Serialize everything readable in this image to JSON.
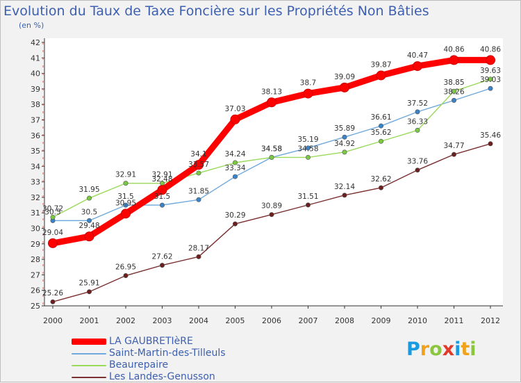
{
  "header": {
    "title": "Evolution du Taux de Taxe Foncière sur les Propriétés Non Bâties",
    "unit": "(en %)"
  },
  "brand": {
    "text": "Proxiti",
    "letters": [
      "P",
      "r",
      "o",
      "x",
      "i",
      "t",
      "i"
    ],
    "colors": [
      "#1a9be0",
      "#f0a21c",
      "#8cc63f",
      "#e03a2a",
      "#1a9be0",
      "#f0a21c",
      "#8cc63f"
    ]
  },
  "chart_data": {
    "type": "line",
    "title": "Evolution du Taux de Taxe Foncière sur les Propriétés Non Bâties",
    "ylabel": "(en %)",
    "xlabel": "",
    "x": [
      2000,
      2001,
      2002,
      2003,
      2004,
      2005,
      2006,
      2007,
      2008,
      2009,
      2010,
      2011,
      2012
    ],
    "ylim": [
      25,
      42
    ],
    "yticks": [
      25,
      26,
      27,
      28,
      29,
      30,
      31,
      32,
      33,
      34,
      35,
      36,
      37,
      38,
      39,
      40,
      41,
      42
    ],
    "grid": false,
    "legend_position": "bottom-left",
    "series": [
      {
        "name": "LA GAUBRETIèRE",
        "color": "#ff0000",
        "marker_color": "#ff0000",
        "emphasis": true,
        "values": [
          29.04,
          29.48,
          30.95,
          32.48,
          34.1,
          37.03,
          38.13,
          38.7,
          39.09,
          39.87,
          40.47,
          40.86,
          40.86
        ],
        "labels": [
          "29.04",
          "29.48",
          "30.95",
          "32.48",
          "34.1",
          "37.03",
          "38.13",
          "38.7",
          "39.09",
          "39.87",
          "40.47",
          "40.86",
          "40.86"
        ]
      },
      {
        "name": "Saint-Martin-des-Tilleuls",
        "color": "#6fa8dc",
        "marker_color": "#3a83c9",
        "emphasis": false,
        "values": [
          30.5,
          30.5,
          31.5,
          31.5,
          31.85,
          33.34,
          34.58,
          35.19,
          35.89,
          36.61,
          37.52,
          38.26,
          39.03
        ],
        "labels": [
          "30.5",
          "30.5",
          "31.5",
          "31.5",
          "31.85",
          "33.34",
          "34.58",
          "35.19",
          "35.89",
          "36.61",
          "37.52",
          "38.26",
          "39.03"
        ]
      },
      {
        "name": "Beaurepaire",
        "color": "#9ad95a",
        "marker_color": "#7ac943",
        "emphasis": false,
        "values": [
          30.72,
          31.95,
          32.91,
          32.91,
          33.57,
          34.24,
          34.58,
          34.58,
          34.92,
          35.62,
          36.33,
          38.85,
          39.63
        ],
        "labels": [
          "30.72",
          "31.95",
          "32.91",
          "32.91",
          "33.57",
          "34.24",
          "34.58",
          "34.58",
          "34.92",
          "35.62",
          "36.33",
          "38.85",
          "39.63"
        ]
      },
      {
        "name": "Les Landes-Genusson",
        "color": "#7a3030",
        "marker_color": "#6b1f1f",
        "emphasis": false,
        "values": [
          25.26,
          25.91,
          26.95,
          27.62,
          28.17,
          30.29,
          30.89,
          31.51,
          32.14,
          32.62,
          33.76,
          34.77,
          35.46
        ],
        "labels": [
          "25.26",
          "25.91",
          "26.95",
          "27.62",
          "28.17",
          "30.29",
          "30.89",
          "31.51",
          "32.14",
          "32.62",
          "33.76",
          "34.77",
          "35.46"
        ]
      }
    ]
  }
}
